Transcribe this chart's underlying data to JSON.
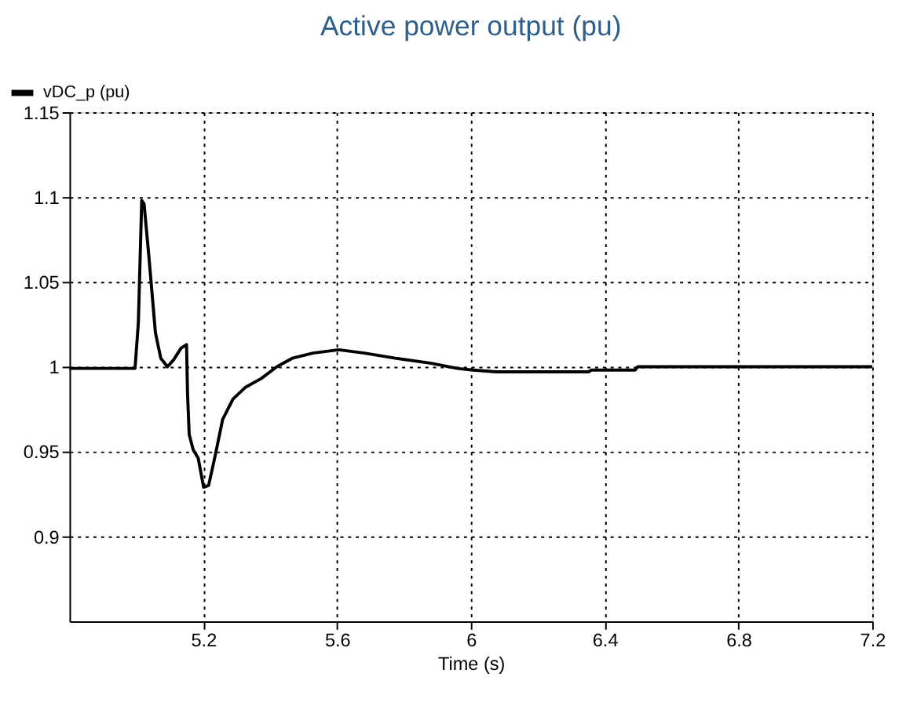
{
  "chart_data": {
    "type": "line",
    "title": "Active power output (pu)",
    "xlabel": "Time (s)",
    "x": [
      4.8,
      4.996,
      5.006,
      5.016,
      5.023,
      5.037,
      5.057,
      5.073,
      5.093,
      5.111,
      5.134,
      5.15,
      5.153,
      5.158,
      5.17,
      5.185,
      5.201,
      5.216,
      5.235,
      5.258,
      5.289,
      5.327,
      5.373,
      5.42,
      5.466,
      5.528,
      5.605,
      5.682,
      5.774,
      5.882,
      5.959,
      6.006,
      6.075,
      6.352,
      6.36,
      6.491,
      6.499,
      7.2
    ],
    "series": [
      {
        "name": "vDC_p (pu)",
        "color": "#000000",
        "values": [
          0.999,
          0.999,
          1.026,
          1.098,
          1.096,
          1.066,
          1.02,
          1.005,
          1.0,
          1.004,
          1.011,
          1.013,
          0.984,
          0.96,
          0.951,
          0.946,
          0.929,
          0.93,
          0.947,
          0.969,
          0.981,
          0.988,
          0.993,
          1.0,
          1.005,
          1.008,
          1.01,
          1.008,
          1.005,
          1.002,
          0.999,
          0.998,
          0.997,
          0.997,
          0.998,
          0.998,
          1.0,
          1.0
        ]
      }
    ],
    "xlim": [
      4.8,
      7.2
    ],
    "xticks": [
      5.2,
      5.6,
      6,
      6.4,
      6.8,
      7.2
    ],
    "ylim": [
      0.85,
      1.15
    ],
    "yticks": [
      0.9,
      0.95,
      1,
      1.05,
      1.1,
      1.15
    ],
    "grid": true,
    "legend": "top left",
    "line_style": "solid",
    "marker": "none"
  }
}
